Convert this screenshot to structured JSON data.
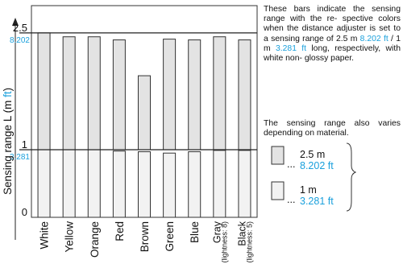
{
  "chart_data": {
    "type": "bar",
    "categories": [
      "White",
      "Yellow",
      "Orange",
      "Red",
      "Brown",
      "Green",
      "Blue",
      "Gray",
      "Black"
    ],
    "category_sublabels": [
      "",
      "",
      "",
      "",
      "",
      "",
      "",
      "(lightness: 8)",
      "(lightness: 5)"
    ],
    "series": [
      {
        "name": "2.5 m (8.202 ft) setting",
        "values": [
          2.5,
          2.45,
          2.45,
          2.41,
          1.95,
          2.42,
          2.41,
          2.45,
          2.41
        ]
      },
      {
        "name": "1 m (3.281 ft) setting",
        "values": [
          1.0,
          1.0,
          1.0,
          0.98,
          0.97,
          0.95,
          0.97,
          0.99,
          0.99
        ]
      }
    ],
    "ylabel": "Sensing range L (m ft)",
    "ylabel_main": "Sensing range L (m",
    "ylabel_ft": "ft",
    "ylabel_close": ")",
    "yticks": [
      {
        "value": 0,
        "label": "0",
        "ft": ""
      },
      {
        "value": 1,
        "label": "1",
        "ft": "3.281"
      },
      {
        "value": 2.5,
        "label": "2.5",
        "ft": "8.202"
      }
    ],
    "ylim": [
      0,
      2.85
    ],
    "colors": {
      "upper_bar": "#e3e3e3",
      "lower_bar": "#f2f2f2",
      "ft": "#1aa0dc",
      "stroke": "#333333"
    }
  },
  "description": {
    "p1": "These bars indicate the sensing range with the re- spective colors when the distance adjuster is set to a sensing range of 2.5 m",
    "ft1": "8.202 ft",
    "p2": " / 1 m ",
    "ft2": "3.281 ft",
    "p3": " long, respectively, with white non- glossy paper.",
    "note": "The sensing range also varies depending on material."
  },
  "legend": {
    "dots": "...",
    "item1_m": "2.5 m",
    "item1_ft": "8.202 ft",
    "item2_m": "1 m",
    "item2_ft": "3.281 ft"
  }
}
